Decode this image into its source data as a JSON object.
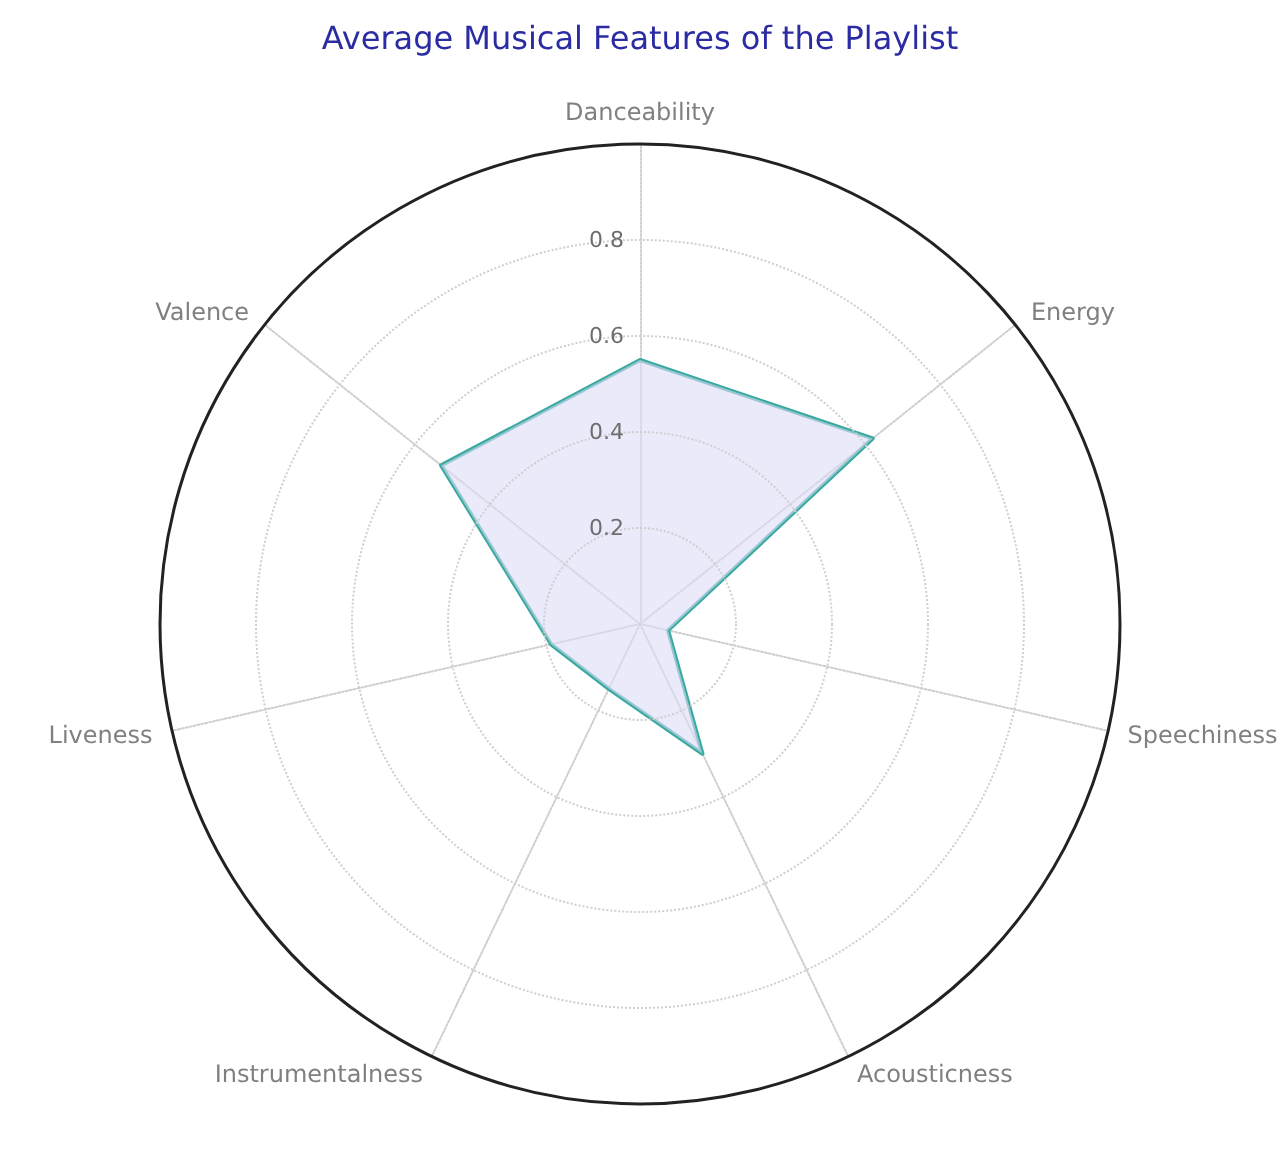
{
  "chart_data": {
    "type": "radar",
    "title": "Average Musical Features of the Playlist",
    "categories": [
      "Danceability",
      "Energy",
      "Speechiness",
      "Acousticness",
      "Instrumentalness",
      "Liveness",
      "Valence"
    ],
    "series": [
      {
        "color": "#3aa99f",
        "values": [
          0.55,
          0.62,
          0.06,
          0.3,
          0.15,
          0.19,
          0.53
        ]
      }
    ],
    "ylim": [
      0,
      1
    ],
    "yticks": [
      0.2,
      0.4,
      0.6,
      0.8
    ],
    "grid": true,
    "marker": "none",
    "line_style": "solid"
  }
}
